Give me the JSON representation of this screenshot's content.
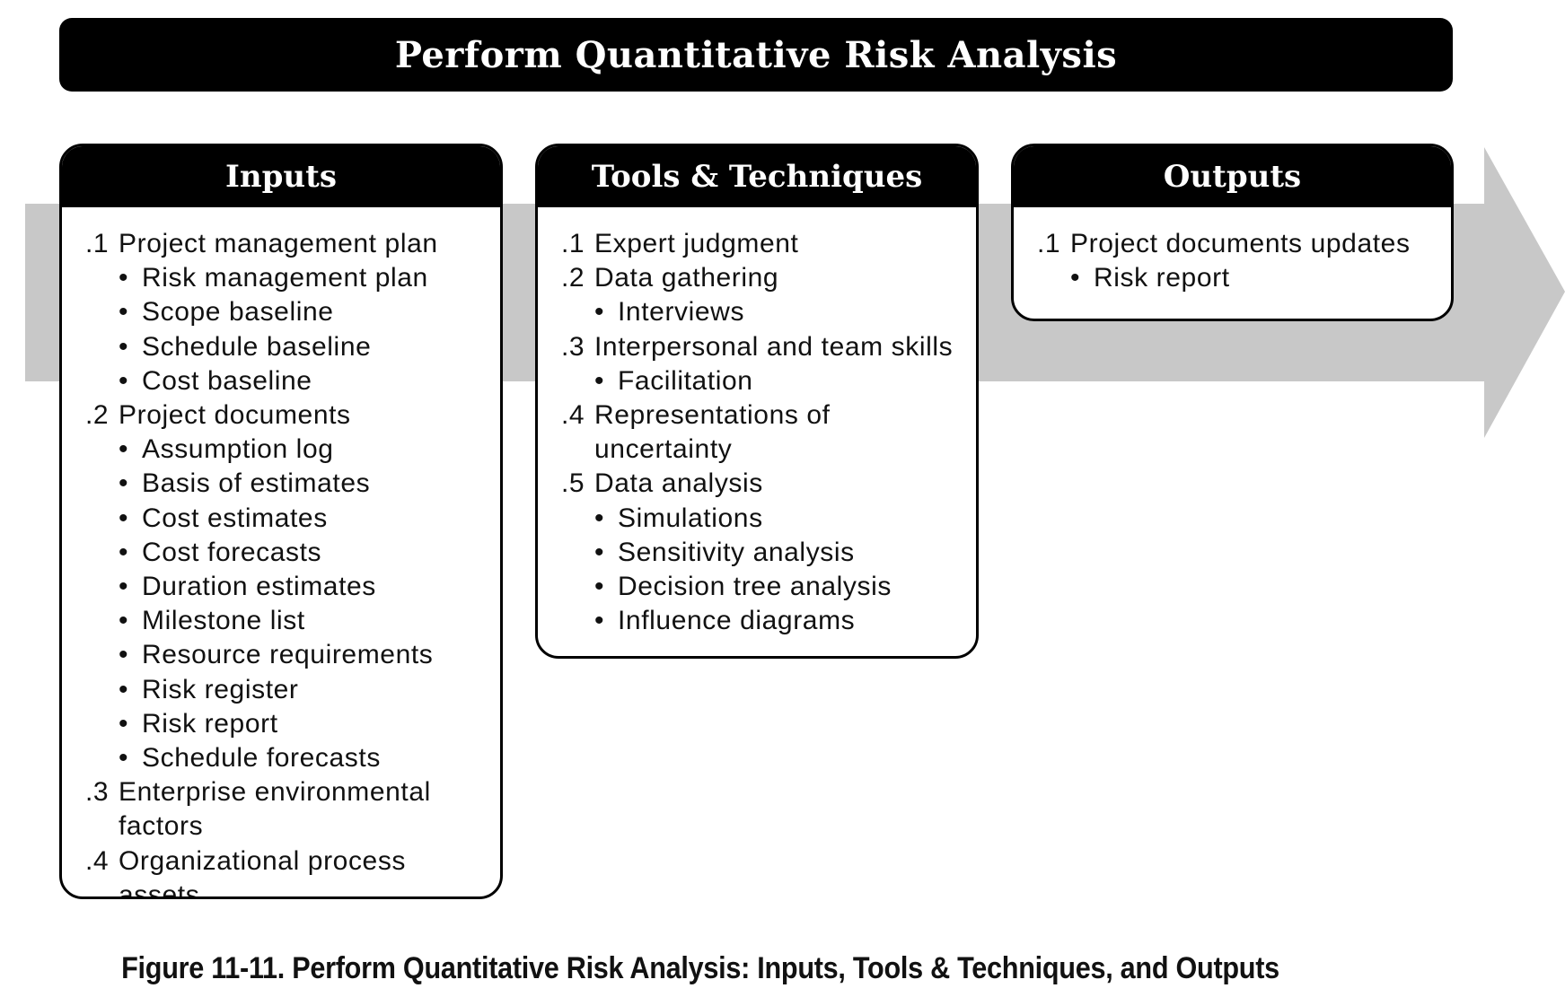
{
  "title": "Perform Quantitative Risk Analysis",
  "columns": [
    {
      "heading": "Inputs",
      "items": [
        {
          "num": ".1",
          "text": "Project management plan",
          "subs": [
            "Risk management plan",
            "Scope baseline",
            "Schedule baseline",
            "Cost baseline"
          ]
        },
        {
          "num": ".2",
          "text": "Project documents",
          "subs": [
            "Assumption log",
            "Basis of estimates",
            "Cost estimates",
            "Cost forecasts",
            "Duration estimates",
            "Milestone list",
            "Resource requirements",
            "Risk register",
            "Risk report",
            "Schedule forecasts"
          ]
        },
        {
          "num": ".3",
          "text": "Enterprise environmental factors",
          "subs": []
        },
        {
          "num": ".4",
          "text": "Organizational process assets",
          "subs": []
        }
      ]
    },
    {
      "heading": "Tools & Techniques",
      "items": [
        {
          "num": ".1",
          "text": "Expert judgment",
          "subs": []
        },
        {
          "num": ".2",
          "text": "Data gathering",
          "subs": [
            "Interviews"
          ]
        },
        {
          "num": ".3",
          "text": "Interpersonal and team skills",
          "subs": [
            "Facilitation"
          ]
        },
        {
          "num": ".4",
          "text": "Representations of uncertainty",
          "subs": []
        },
        {
          "num": ".5",
          "text": "Data analysis",
          "subs": [
            "Simulations",
            "Sensitivity analysis",
            "Decision tree analysis",
            "Influence diagrams"
          ]
        }
      ]
    },
    {
      "heading": "Outputs",
      "items": [
        {
          "num": ".1",
          "text": "Project documents updates",
          "subs": [
            "Risk report"
          ]
        }
      ]
    }
  ],
  "caption": "Figure 11-11. Perform Quantitative Risk Analysis: Inputs, Tools & Techniques, and Outputs",
  "colors": {
    "arrow": "#c8c8c8",
    "header": "#000000",
    "box_fill": "#ffffff"
  }
}
